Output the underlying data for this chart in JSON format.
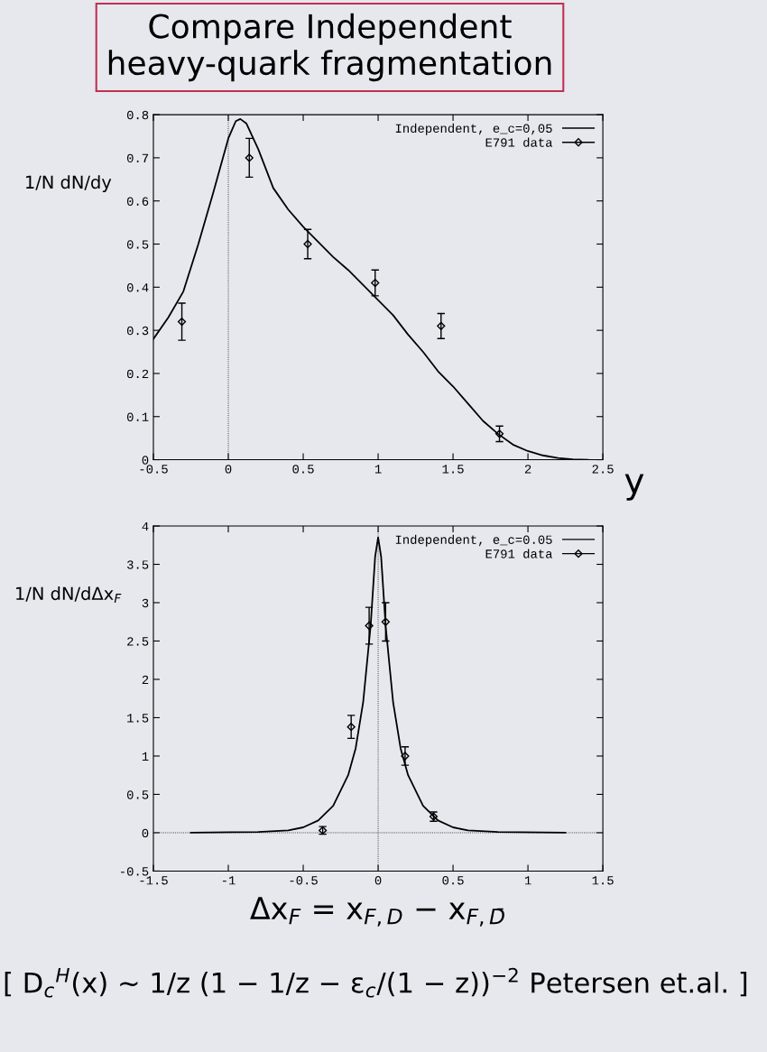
{
  "chart_data": [
    {
      "type": "line",
      "title": "Compare Independent\nheavy-quark fragmentation",
      "ylabel": "1/N dN/dy",
      "xlabel": "y",
      "xlim": [
        -0.5,
        2.5
      ],
      "xticks": [
        -0.5,
        0,
        0.5,
        1,
        1.5,
        2,
        2.5
      ],
      "ylim": [
        0,
        0.8
      ],
      "yticks": [
        0,
        0.1,
        0.2,
        0.3,
        0.4,
        0.5,
        0.6,
        0.7,
        0.8
      ],
      "grid": false,
      "legend": "top right",
      "ref_lines": [
        {
          "axis": "x",
          "value": 0,
          "line_style": "dotted"
        }
      ],
      "series": [
        {
          "name": "Independent, e_c=0,05",
          "color": "#000000",
          "marker": "none",
          "line_style": "solid",
          "x": [
            -0.5,
            -0.4,
            -0.3,
            -0.2,
            -0.1,
            0,
            0.05,
            0.08,
            0.12,
            0.2,
            0.3,
            0.4,
            0.5,
            0.6,
            0.7,
            0.8,
            0.9,
            1.0,
            1.1,
            1.2,
            1.3,
            1.4,
            1.5,
            1.6,
            1.7,
            1.8,
            1.9,
            2.0,
            2.1,
            2.2,
            2.3,
            2.4
          ],
          "values": [
            0.28,
            0.33,
            0.39,
            0.5,
            0.62,
            0.745,
            0.785,
            0.79,
            0.78,
            0.72,
            0.63,
            0.58,
            0.54,
            0.505,
            0.47,
            0.44,
            0.405,
            0.37,
            0.335,
            0.29,
            0.25,
            0.205,
            0.17,
            0.13,
            0.09,
            0.06,
            0.035,
            0.02,
            0.01,
            0.004,
            0.001,
            0.0
          ]
        },
        {
          "name": "E791 data",
          "type": "scatter",
          "color": "#000000",
          "marker": "diamond",
          "x": [
            -0.31,
            0.14,
            0.53,
            0.98,
            1.42,
            1.81
          ],
          "values": [
            0.32,
            0.7,
            0.5,
            0.41,
            0.31,
            0.06
          ],
          "errors": [
            0.043,
            0.045,
            0.034,
            0.03,
            0.029,
            0.018
          ]
        }
      ]
    },
    {
      "type": "line",
      "ylabel": "1/N dN/dΔx$_{F}$",
      "xlabel": "Δx$_{F}$ = x$_{F,D}$ − x$_{F,D̄}$",
      "xlim": [
        -1.5,
        1.5
      ],
      "xticks": [
        -1.5,
        -1,
        -0.5,
        0,
        0.5,
        1,
        1.5
      ],
      "ylim": [
        -0.5,
        4
      ],
      "yticks": [
        -0.5,
        0,
        0.5,
        1,
        1.5,
        2,
        2.5,
        3,
        3.5,
        4
      ],
      "grid": false,
      "legend": "top right",
      "ref_lines": [
        {
          "axis": "x",
          "value": 0,
          "line_style": "dotted"
        },
        {
          "axis": "y",
          "value": 0,
          "line_style": "dotted"
        }
      ],
      "annotations": [
        "[ D$_{c}$$^{H}$(x) ~ 1/z (1 − 1/z − ε$_{c}$/(1 − z))$^{−2}$ Petersen et.al. ]"
      ],
      "series": [
        {
          "name": "Independent, e_c=0.05",
          "color": "#000000",
          "marker": "none",
          "line_style": "solid",
          "x": [
            -1.25,
            -0.8,
            -0.6,
            -0.5,
            -0.4,
            -0.3,
            -0.2,
            -0.15,
            -0.1,
            -0.05,
            -0.02,
            0,
            0.02,
            0.05,
            0.1,
            0.15,
            0.2,
            0.3,
            0.4,
            0.5,
            0.6,
            0.8,
            1.25
          ],
          "values": [
            0,
            0.01,
            0.03,
            0.07,
            0.16,
            0.35,
            0.75,
            1.1,
            1.7,
            2.7,
            3.6,
            3.85,
            3.6,
            2.7,
            1.7,
            1.1,
            0.75,
            0.35,
            0.16,
            0.07,
            0.03,
            0.01,
            0
          ]
        },
        {
          "name": "E791 data",
          "type": "scatter",
          "color": "#000000",
          "marker": "diamond",
          "x": [
            -0.37,
            -0.18,
            -0.06,
            0.05,
            0.18,
            0.37
          ],
          "values": [
            0.03,
            1.38,
            2.7,
            2.75,
            1.0,
            0.21
          ],
          "errors": [
            0.05,
            0.15,
            0.24,
            0.25,
            0.12,
            0.06
          ]
        }
      ]
    }
  ]
}
